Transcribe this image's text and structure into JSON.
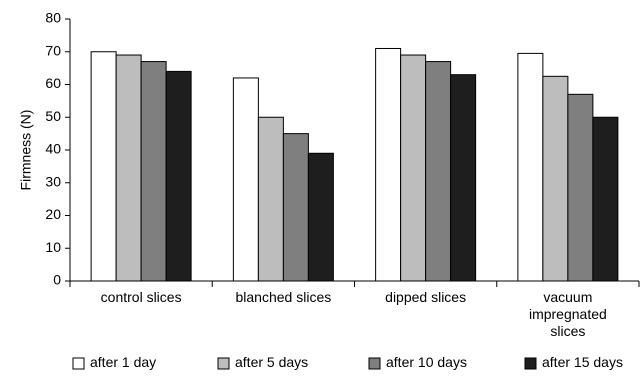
{
  "chart_data": {
    "type": "bar",
    "ylabel": "Firmness (N)",
    "xlabel": "",
    "ylim": [
      0,
      80
    ],
    "yticks": [
      0,
      10,
      20,
      30,
      40,
      50,
      60,
      70,
      80
    ],
    "grid": false,
    "legend_position": "bottom",
    "categories": [
      [
        "control slices"
      ],
      [
        "blanched slices"
      ],
      [
        "dipped slices"
      ],
      [
        "vacuum",
        "impregnated",
        "slices"
      ]
    ],
    "series": [
      {
        "name": "after 1 day",
        "color": "#ffffff",
        "values": [
          70,
          62,
          71,
          69.5
        ]
      },
      {
        "name": "after 5 days",
        "color": "#bdbdbd",
        "values": [
          69,
          50,
          69,
          62.5
        ]
      },
      {
        "name": "after 10 days",
        "color": "#7f7f7f",
        "values": [
          67,
          45,
          67,
          57
        ]
      },
      {
        "name": "after 15 days",
        "color": "#1e1e1e",
        "values": [
          64,
          39,
          63,
          50
        ]
      }
    ]
  }
}
